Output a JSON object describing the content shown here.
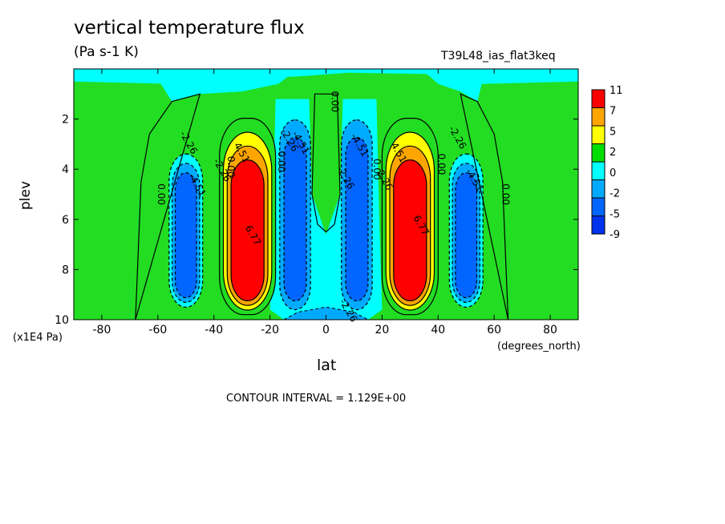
{
  "chart_data": {
    "type": "heatmap",
    "title": "vertical temperature flux",
    "subtitle": "(Pa s-1 K)",
    "run_label": "T39L48_ias_flat3keq",
    "xlabel": "lat",
    "xunit": "(degrees_north)",
    "ylabel": "plev",
    "yunit": "(x1E4 Pa)",
    "xlim": [
      -90,
      90
    ],
    "ylim": [
      0,
      10
    ],
    "y_inverted": true,
    "x_ticks": [
      "-80",
      "-60",
      "-40",
      "-20",
      "0",
      "20",
      "40",
      "60",
      "80"
    ],
    "x_tick_values": [
      -80,
      -60,
      -40,
      -20,
      0,
      20,
      40,
      60,
      80
    ],
    "y_ticks": [
      "2",
      "4",
      "6",
      "8",
      "10"
    ],
    "y_tick_values": [
      2,
      4,
      6,
      8,
      10
    ],
    "contour_interval_text": "CONTOUR INTERVAL = 1.129E+00",
    "colorbar": {
      "labels": [
        "11",
        "7",
        "5",
        "2",
        "0",
        "-2",
        "-5",
        "-9"
      ],
      "colors": [
        "#ff0000",
        "#ffa500",
        "#ffff00",
        "#00dd00",
        "#00ffff",
        "#00aaff",
        "#0066ff",
        "#0033ee"
      ]
    },
    "fill_colors": {
      "zero_green": "#22dd22",
      "light_cyan": "#00ffff",
      "mid_blue": "#00aaff",
      "deep_blue": "#0066ff",
      "yellow": "#ffff00",
      "orange": "#ffa500",
      "red": "#ff0000"
    },
    "features": [
      {
        "lat": -50,
        "pmin": 3.2,
        "pmax": 9.5,
        "value_class": "deep_blue",
        "peak": -4.51
      },
      {
        "lat": -28,
        "pmin": 2.5,
        "pmax": 9.7,
        "value_class": "red",
        "peak": 6.77
      },
      {
        "lat": -11,
        "pmin": 1.8,
        "pmax": 9.6,
        "value_class": "deep_blue",
        "peak": -4.51
      },
      {
        "lat": 11,
        "pmin": 1.8,
        "pmax": 9.6,
        "value_class": "deep_blue",
        "peak": -4.51
      },
      {
        "lat": 30,
        "pmin": 2.5,
        "pmax": 9.7,
        "value_class": "red",
        "peak": 6.77
      },
      {
        "lat": 50,
        "pmin": 3.2,
        "pmax": 9.5,
        "value_class": "deep_blue",
        "peak": -4.51
      }
    ],
    "contour_labels": [
      {
        "text": "0.00",
        "lat": -60,
        "plev": 5.0
      },
      {
        "text": "-2.26",
        "lat": -50,
        "plev": 3.0
      },
      {
        "text": "-4.51",
        "lat": -47,
        "plev": 4.7
      },
      {
        "text": "-2.26",
        "lat": -38,
        "plev": 4.1
      },
      {
        "text": "0.00",
        "lat": -35,
        "plev": 3.9
      },
      {
        "text": "4.51",
        "lat": -31,
        "plev": 3.4
      },
      {
        "text": "6.77",
        "lat": -27,
        "plev": 6.7
      },
      {
        "text": "0.00",
        "lat": -17,
        "plev": 3.7
      },
      {
        "text": "-2.26",
        "lat": -14,
        "plev": 2.9
      },
      {
        "text": "-4.51",
        "lat": -10,
        "plev": 3.0
      },
      {
        "text": "0.00",
        "lat": 2,
        "plev": 1.3
      },
      {
        "text": "-2.26",
        "lat": 6,
        "plev": 4.4
      },
      {
        "text": "-4.51",
        "lat": 11,
        "plev": 3.1
      },
      {
        "text": "0.00",
        "lat": 17,
        "plev": 4.0
      },
      {
        "text": "2.26",
        "lat": 20,
        "plev": 4.5
      },
      {
        "text": "4.51",
        "lat": 25,
        "plev": 3.4
      },
      {
        "text": "6.77",
        "lat": 33,
        "plev": 6.3
      },
      {
        "text": "0.00",
        "lat": 40,
        "plev": 3.8
      },
      {
        "text": "-2.26",
        "lat": 46,
        "plev": 2.8
      },
      {
        "text": "-4.51",
        "lat": 52,
        "plev": 4.5
      },
      {
        "text": "0.00",
        "lat": 63,
        "plev": 5.0
      },
      {
        "text": "-2.26",
        "lat": 7,
        "plev": 9.7
      }
    ]
  }
}
